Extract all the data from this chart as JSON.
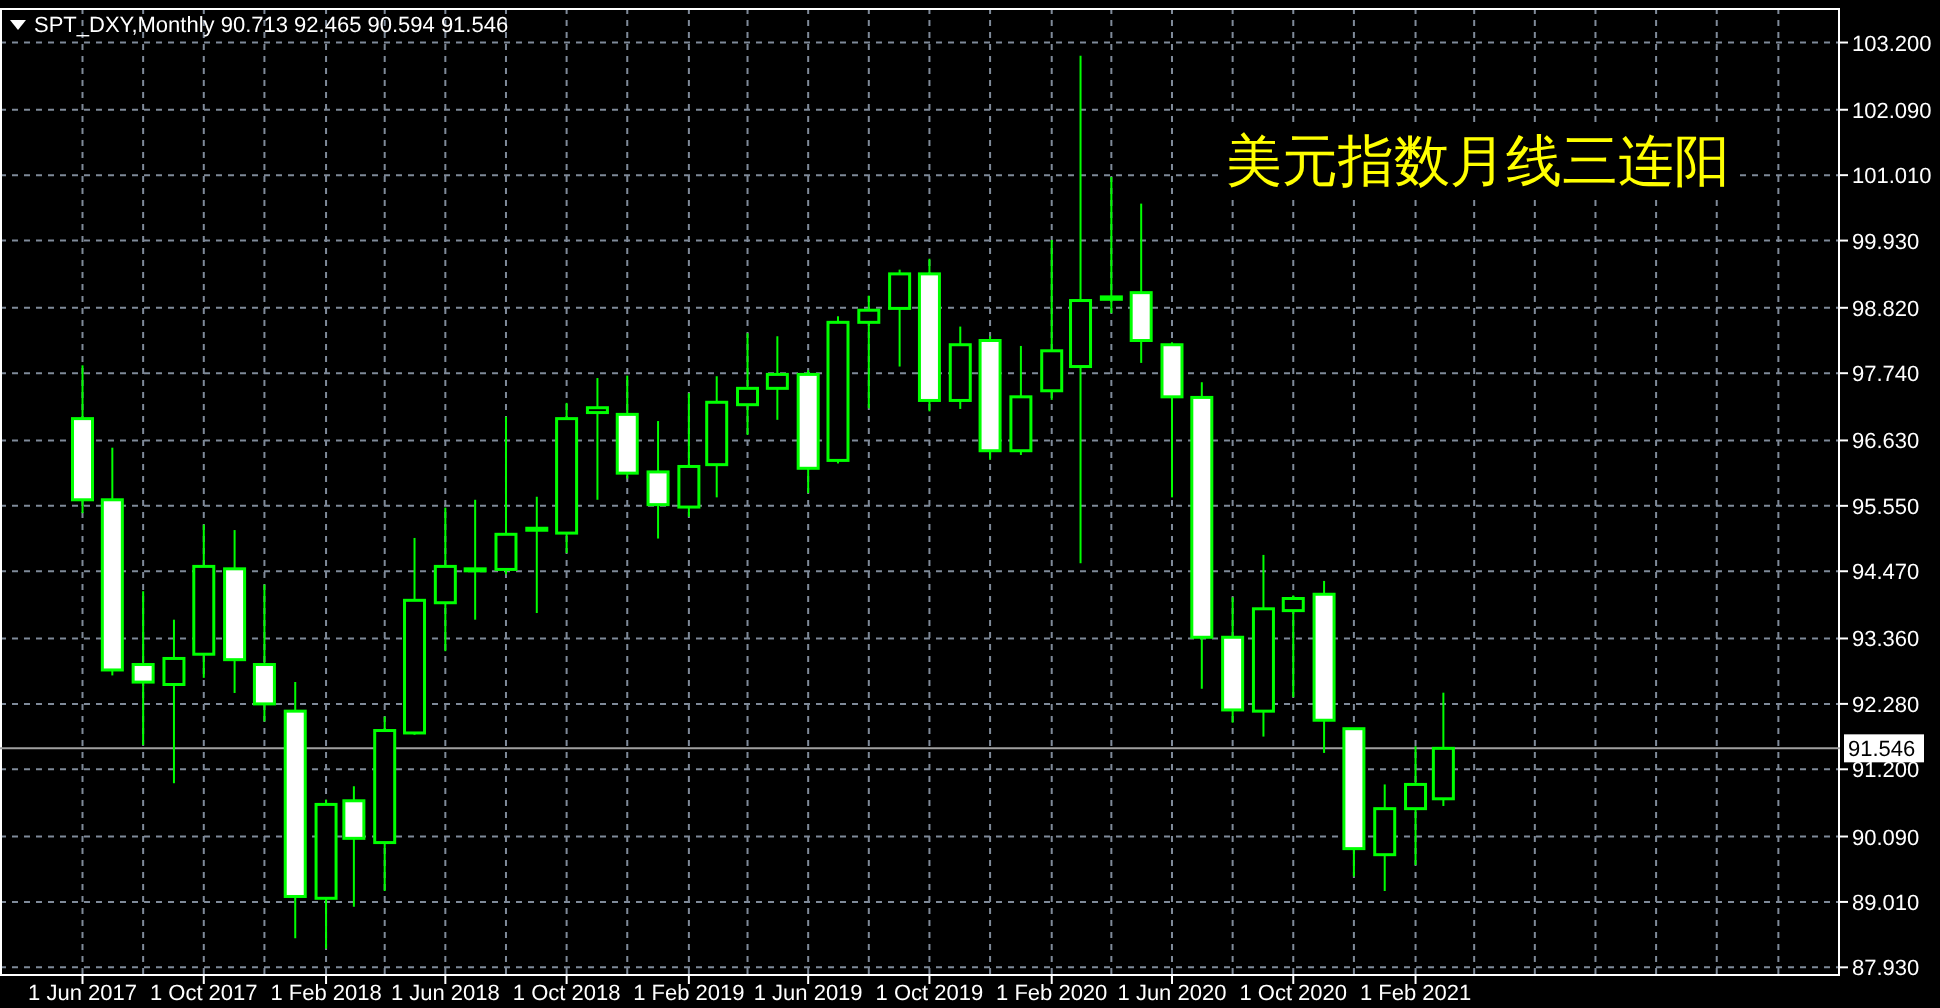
{
  "chart_data": {
    "type": "candlestick",
    "title": "美元指数月线三连阳",
    "annotations": [
      "SPT_DXY,Monthly 90.713 92.465 90.594 91.546"
    ],
    "color": "#00ff00",
    "x": [
      "2017-06",
      "2017-07",
      "2017-08",
      "2017-09",
      "2017-10",
      "2017-11",
      "2017-12",
      "2018-01",
      "2018-02",
      "2018-03",
      "2018-04",
      "2018-05",
      "2018-06",
      "2018-07",
      "2018-08",
      "2018-09",
      "2018-10",
      "2018-11",
      "2018-12",
      "2019-01",
      "2019-02",
      "2019-03",
      "2019-04",
      "2019-05",
      "2019-06",
      "2019-07",
      "2019-08",
      "2019-09",
      "2019-10",
      "2019-11",
      "2019-12",
      "2020-01",
      "2020-02",
      "2020-03",
      "2020-04",
      "2020-05",
      "2020-06",
      "2020-07",
      "2020-08",
      "2020-09",
      "2020-10",
      "2020-11",
      "2020-12",
      "2021-01",
      "2021-02",
      "2021-03"
    ],
    "ohlc": [
      [
        96.99,
        97.87,
        95.43,
        95.65
      ],
      [
        95.65,
        96.51,
        92.75,
        92.84
      ],
      [
        92.93,
        94.14,
        91.6,
        92.64
      ],
      [
        92.6,
        93.67,
        90.97,
        93.03
      ],
      [
        93.1,
        95.24,
        92.71,
        94.55
      ],
      [
        94.51,
        95.15,
        92.46,
        93.01
      ],
      [
        92.93,
        94.25,
        91.99,
        92.28
      ],
      [
        92.16,
        92.64,
        88.41,
        89.1
      ],
      [
        89.07,
        90.7,
        88.24,
        90.62
      ],
      [
        90.68,
        90.92,
        88.93,
        90.06
      ],
      [
        89.99,
        92.07,
        89.19,
        91.84
      ],
      [
        91.8,
        95.02,
        91.77,
        93.99
      ],
      [
        93.95,
        95.52,
        93.15,
        94.55
      ],
      [
        94.5,
        95.65,
        93.67,
        94.51
      ],
      [
        94.5,
        97.02,
        94.42,
        95.08
      ],
      [
        95.17,
        95.7,
        93.78,
        95.18
      ],
      [
        95.1,
        97.25,
        94.77,
        96.99
      ],
      [
        97.09,
        97.66,
        95.65,
        97.17
      ],
      [
        97.06,
        97.7,
        96.0,
        96.09
      ],
      [
        96.11,
        96.95,
        95.01,
        95.57
      ],
      [
        95.53,
        97.41,
        95.37,
        96.2
      ],
      [
        96.23,
        97.69,
        95.69,
        97.26
      ],
      [
        97.22,
        98.4,
        96.72,
        97.49
      ],
      [
        97.49,
        98.35,
        96.97,
        97.72
      ],
      [
        97.72,
        97.79,
        95.76,
        96.17
      ],
      [
        96.3,
        98.68,
        96.25,
        98.58
      ],
      [
        98.58,
        99.02,
        97.16,
        98.78
      ],
      [
        98.81,
        99.45,
        97.85,
        99.38
      ],
      [
        99.38,
        99.63,
        97.11,
        97.29
      ],
      [
        97.29,
        98.51,
        97.15,
        98.21
      ],
      [
        98.28,
        98.35,
        96.31,
        96.46
      ],
      [
        96.46,
        98.19,
        96.39,
        97.35
      ],
      [
        97.45,
        99.94,
        97.3,
        98.11
      ],
      [
        97.85,
        102.98,
        94.6,
        98.94
      ],
      [
        99.0,
        100.98,
        98.73,
        98.96
      ],
      [
        99.07,
        100.54,
        97.91,
        98.28
      ],
      [
        98.21,
        98.25,
        95.69,
        97.35
      ],
      [
        97.34,
        97.59,
        92.53,
        93.38
      ],
      [
        93.38,
        94.04,
        91.97,
        92.18
      ],
      [
        92.16,
        94.74,
        91.74,
        93.85
      ],
      [
        93.82,
        94.07,
        92.39,
        94.02
      ],
      [
        94.09,
        94.31,
        91.47,
        92.01
      ],
      [
        91.87,
        91.88,
        89.43,
        89.89
      ],
      [
        89.79,
        90.95,
        89.19,
        90.55
      ],
      [
        90.55,
        91.58,
        89.62,
        90.95
      ],
      [
        90.713,
        92.465,
        90.594,
        91.546
      ]
    ],
    "xlim": [
      "2017-03-10",
      "2022-04-04"
    ],
    "xticks": [
      {
        "value": "2017-06",
        "label": "1 Jun 2017"
      },
      {
        "value": "2017-08",
        "label": null
      },
      {
        "value": "2017-10",
        "label": "1 Oct 2017"
      },
      {
        "value": "2017-12",
        "label": null
      },
      {
        "value": "2018-02",
        "label": "1 Feb 2018"
      },
      {
        "value": "2018-04",
        "label": null
      },
      {
        "value": "2018-06",
        "label": "1 Jun 2018"
      },
      {
        "value": "2018-08",
        "label": null
      },
      {
        "value": "2018-10",
        "label": "1 Oct 2018"
      },
      {
        "value": "2018-12",
        "label": null
      },
      {
        "value": "2019-02",
        "label": "1 Feb 2019"
      },
      {
        "value": "2019-04",
        "label": null
      },
      {
        "value": "2019-06",
        "label": "1 Jun 2019"
      },
      {
        "value": "2019-08",
        "label": null
      },
      {
        "value": "2019-10",
        "label": "1 Oct 2019"
      },
      {
        "value": "2019-12",
        "label": null
      },
      {
        "value": "2020-02",
        "label": "1 Feb 2020"
      },
      {
        "value": "2020-04",
        "label": null
      },
      {
        "value": "2020-06",
        "label": "1 Jun 2020"
      },
      {
        "value": "2020-08",
        "label": null
      },
      {
        "value": "2020-10",
        "label": "1 Oct 2020"
      },
      {
        "value": "2020-12",
        "label": null
      },
      {
        "value": "2021-02",
        "label": "1 Feb 2021"
      },
      {
        "value": "2021-04",
        "label": null
      },
      {
        "value": "2021-06",
        "label": null
      },
      {
        "value": "2021-08",
        "label": null
      },
      {
        "value": "2021-10",
        "label": null
      },
      {
        "value": "2021-12",
        "label": null
      },
      {
        "value": "2022-02",
        "label": null
      }
    ],
    "ylim": [
      87.82,
      103.77
    ],
    "yticks": [
      {
        "value": 103.2,
        "label": "103.200"
      },
      {
        "value": 102.09,
        "label": "102.090"
      },
      {
        "value": 101.01,
        "label": "101.010"
      },
      {
        "value": 99.93,
        "label": "99.930"
      },
      {
        "value": 98.82,
        "label": "98.820"
      },
      {
        "value": 97.74,
        "label": "97.740"
      },
      {
        "value": 96.63,
        "label": "96.630"
      },
      {
        "value": 95.55,
        "label": "95.550"
      },
      {
        "value": 94.47,
        "label": "94.470"
      },
      {
        "value": 93.36,
        "label": "93.360"
      },
      {
        "value": 92.28,
        "label": "92.280"
      },
      {
        "value": 91.2,
        "label": "91.200"
      },
      {
        "value": 90.09,
        "label": "90.090"
      },
      {
        "value": 89.01,
        "label": "89.010"
      },
      {
        "value": 87.93,
        "label": "87.930"
      }
    ],
    "ref_lines": [
      {
        "axis": "y",
        "value": 91.546,
        "label": "91.546",
        "color": "#a0a0a0"
      }
    ],
    "grid": true
  }
}
